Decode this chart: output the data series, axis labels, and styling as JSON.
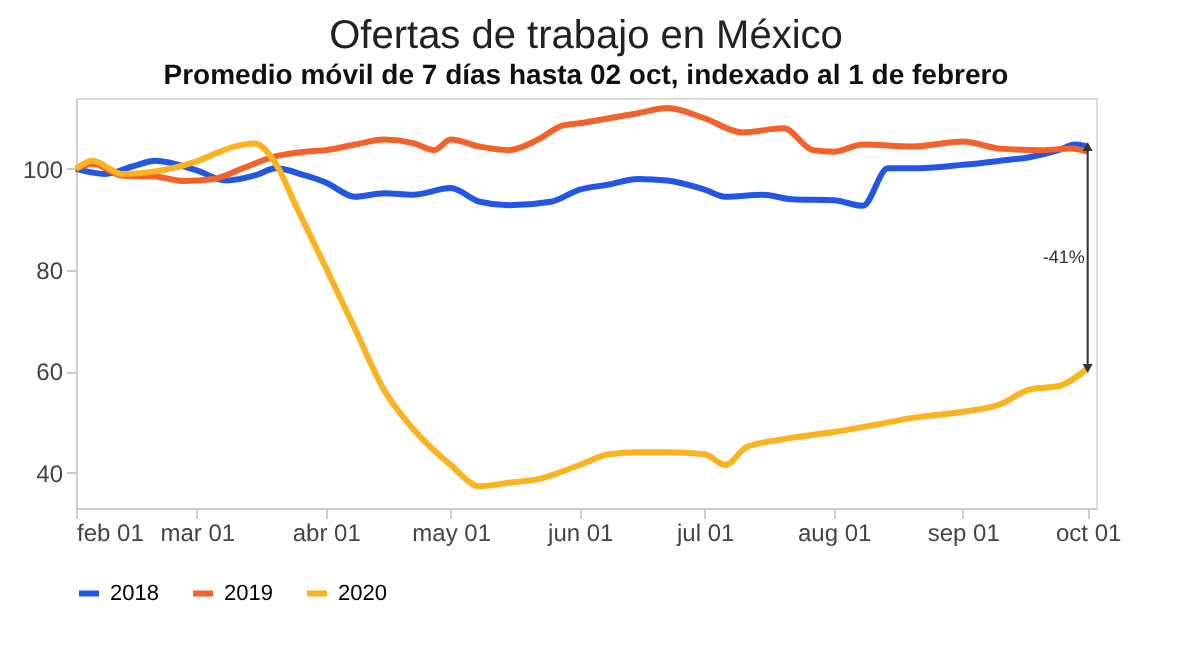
{
  "chart_data": {
    "type": "line",
    "title": "Ofertas de trabajo en México",
    "subtitle": "Promedio móvil de 7 días hasta 02 oct, indexado al 1 de febrero",
    "xlim": [
      "2020-02-01",
      "2020-10-03"
    ],
    "xticks": [
      {
        "value": "2020-02-01",
        "label": "feb 01"
      },
      {
        "value": "2020-03-01",
        "label": "mar 01"
      },
      {
        "value": "2020-04-01",
        "label": "abr 01"
      },
      {
        "value": "2020-05-01",
        "label": "may 01"
      },
      {
        "value": "2020-06-01",
        "label": "jun 01"
      },
      {
        "value": "2020-07-01",
        "label": "jul 01"
      },
      {
        "value": "2020-08-01",
        "label": "aug 01"
      },
      {
        "value": "2020-09-01",
        "label": "sep 01"
      },
      {
        "value": "2020-10-01",
        "label": "oct 01"
      }
    ],
    "ylim": [
      33,
      114
    ],
    "yticks": [
      40,
      60,
      80,
      100
    ],
    "grid": false,
    "legend": "bottom",
    "line_style": "solid",
    "marker": "none",
    "series": [
      {
        "name": "2018",
        "color": "#2257e6",
        "x": [
          "2020-02-01",
          "2020-02-08",
          "2020-02-15",
          "2020-02-20",
          "2020-03-01",
          "2020-03-08",
          "2020-03-15",
          "2020-03-20",
          "2020-03-27",
          "2020-04-01",
          "2020-04-08",
          "2020-04-15",
          "2020-04-22",
          "2020-05-01",
          "2020-05-08",
          "2020-05-15",
          "2020-05-25",
          "2020-06-01",
          "2020-06-08",
          "2020-06-15",
          "2020-06-22",
          "2020-07-01",
          "2020-07-06",
          "2020-07-15",
          "2020-07-22",
          "2020-08-01",
          "2020-08-08",
          "2020-08-14",
          "2020-08-20",
          "2020-09-01",
          "2020-09-10",
          "2020-09-17",
          "2020-09-24",
          "2020-09-28",
          "2020-10-01"
        ],
        "values": [
          100,
          99,
          100.6,
          101.6,
          99.7,
          97.7,
          98.7,
          100.1,
          98.7,
          97.3,
          94.5,
          95.2,
          94.9,
          96.2,
          93.5,
          92.8,
          93.5,
          95.9,
          96.9,
          98,
          97.7,
          95.9,
          94.5,
          94.9,
          94,
          93.8,
          92.7,
          100.1,
          100.1,
          100.8,
          101.6,
          102.3,
          103.7,
          104.8,
          104.4
        ]
      },
      {
        "name": "2019",
        "color": "#f2622a",
        "x": [
          "2020-02-01",
          "2020-02-05",
          "2020-02-12",
          "2020-02-20",
          "2020-02-27",
          "2020-03-05",
          "2020-03-12",
          "2020-03-20",
          "2020-03-27",
          "2020-04-01",
          "2020-04-08",
          "2020-04-15",
          "2020-04-22",
          "2020-04-27",
          "2020-05-01",
          "2020-05-08",
          "2020-05-15",
          "2020-05-22",
          "2020-05-28",
          "2020-06-01",
          "2020-06-08",
          "2020-06-15",
          "2020-06-22",
          "2020-07-01",
          "2020-07-10",
          "2020-07-20",
          "2020-07-27",
          "2020-08-01",
          "2020-08-08",
          "2020-08-20",
          "2020-09-01",
          "2020-09-10",
          "2020-09-20",
          "2020-09-27",
          "2020-10-01"
        ],
        "values": [
          100,
          101,
          98.7,
          98.5,
          97.6,
          98,
          100.1,
          102.5,
          103.4,
          103.7,
          104.8,
          105.8,
          105.1,
          103.7,
          105.8,
          104.4,
          103.7,
          105.8,
          108.6,
          109,
          110,
          111,
          112,
          110,
          107.2,
          108,
          103.7,
          103.4,
          104.8,
          104.4,
          105.4,
          104,
          103.7,
          104,
          103.4
        ]
      },
      {
        "name": "2020",
        "color": "#fbb320",
        "x": [
          "2020-02-01",
          "2020-02-05",
          "2020-02-12",
          "2020-02-20",
          "2020-03-01",
          "2020-03-10",
          "2020-03-15",
          "2020-03-20",
          "2020-03-25",
          "2020-04-01",
          "2020-04-08",
          "2020-04-15",
          "2020-04-22",
          "2020-05-01",
          "2020-05-08",
          "2020-05-15",
          "2020-05-22",
          "2020-06-01",
          "2020-06-08",
          "2020-06-15",
          "2020-06-22",
          "2020-07-01",
          "2020-07-06",
          "2020-07-11",
          "2020-07-20",
          "2020-08-01",
          "2020-08-10",
          "2020-08-20",
          "2020-09-01",
          "2020-09-10",
          "2020-09-17",
          "2020-09-24",
          "2020-10-01"
        ],
        "values": [
          100,
          101.6,
          99,
          99.5,
          101.5,
          104.4,
          105,
          101,
          92.4,
          80.5,
          68.4,
          56.3,
          48.6,
          41.5,
          37.3,
          38,
          38.7,
          41.5,
          43.6,
          44,
          44,
          43.6,
          41.5,
          45,
          46.6,
          48,
          49.3,
          50.8,
          52,
          53.5,
          56.4,
          57.1,
          60.6
        ]
      }
    ],
    "annotations": [
      "-41%"
    ]
  }
}
